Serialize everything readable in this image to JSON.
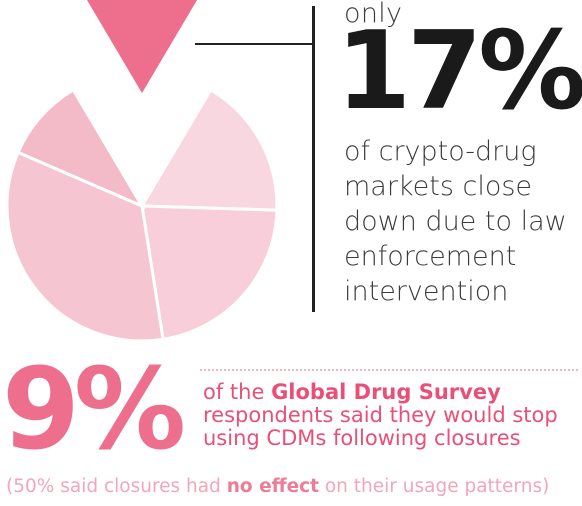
{
  "colors": {
    "highlight_slice": "#ee6f8d",
    "slice_1": "#f9d7e0",
    "slice_2": "#f7ced9",
    "slice_3": "#f5c6d2",
    "slice_4": "#f3bac8",
    "dark_text": "#1a1a1a",
    "body_text": "#3b3b3b",
    "accent_text": "#ea4f77",
    "footnote_text": "#f3a6b9"
  },
  "headline": {
    "prefix": "only",
    "percent": "17%",
    "description": "of crypto-drug markets close down due to law enforcement intervention"
  },
  "survey": {
    "percent": "9%",
    "lead": "of the ",
    "source": "Global Drug Survey",
    "rest": " respondents said they would stop using CDMs following closures"
  },
  "footnote": {
    "open": "(50% said closures had ",
    "emphasis": "no effect",
    "close": " on their usage patterns)"
  },
  "chart_data": {
    "type": "pie",
    "values": [
      17,
      17,
      22,
      34,
      10
    ],
    "highlight_index": 0,
    "exploded_index": 0,
    "slice_colors": [
      "#ee6f8d",
      "#f9d7e0",
      "#f7ced9",
      "#f5c6d2",
      "#f3bac8"
    ]
  }
}
